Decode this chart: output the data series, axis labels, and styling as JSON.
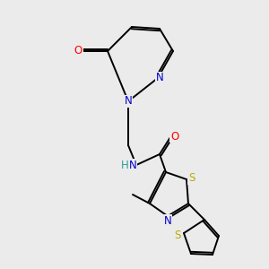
{
  "background_color": "#ebebeb",
  "atom_colors": {
    "C": "#000000",
    "N": "#0000cc",
    "O": "#ff0000",
    "S": "#bbaa00",
    "H": "#339999"
  },
  "figsize": [
    3.0,
    3.0
  ],
  "dpi": 100,
  "lw": 1.4,
  "fontsize": 8.5
}
